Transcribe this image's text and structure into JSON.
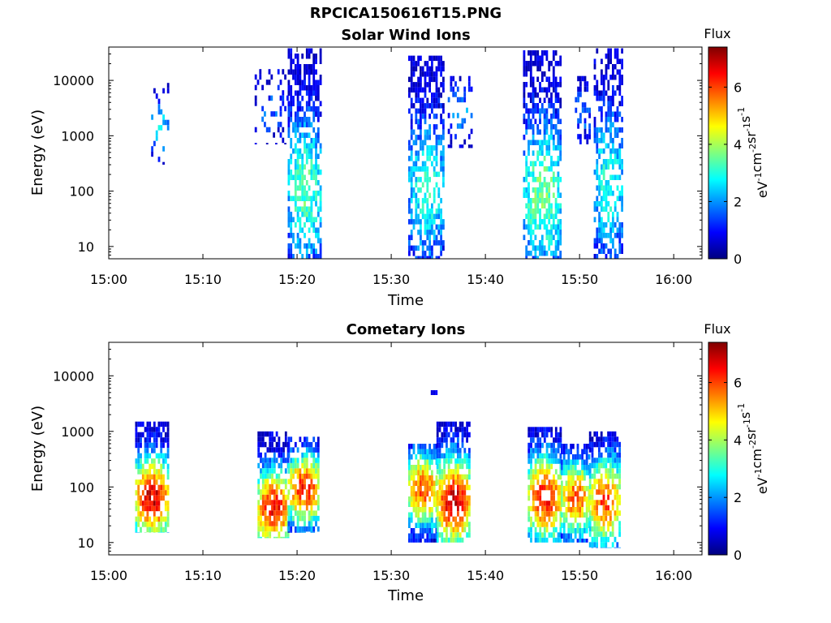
{
  "page_title": "RPCICA150616T15.PNG",
  "colorbar": {
    "label": "Flux",
    "unit_base": "eV",
    "unit_parts": [
      {
        "text": "eV",
        "sup": "-1"
      },
      {
        "text": "cm",
        "sup": "-2"
      },
      {
        "text": "sr",
        "sup": "-1"
      },
      {
        "text": "s",
        "sup": "-1"
      }
    ],
    "ticks": [
      "0",
      "2",
      "4",
      "6"
    ],
    "tick_values": [
      0,
      2,
      4,
      6
    ],
    "range": [
      0,
      7.4
    ],
    "colormap": "jet",
    "colors": [
      "#00007f",
      "#0000ff",
      "#007fff",
      "#00ffff",
      "#7fff7f",
      "#ffff00",
      "#ff7f00",
      "#ff0000",
      "#7f0000"
    ]
  },
  "chart_data": [
    {
      "type": "heatmap",
      "title": "Solar Wind Ions",
      "xlabel": "Time",
      "ylabel": "Energy (eV)",
      "x_ticks": [
        "15:00",
        "15:10",
        "15:20",
        "15:30",
        "15:40",
        "15:50",
        "16:00"
      ],
      "x_tick_minutes": [
        0,
        10,
        20,
        30,
        40,
        50,
        60
      ],
      "xlim_minutes": [
        0,
        63
      ],
      "y_scale": "log",
      "y_ticks": [
        "10",
        "100",
        "1000",
        "10000"
      ],
      "y_tick_values": [
        10,
        100,
        1000,
        10000
      ],
      "ylim": [
        6,
        40000
      ],
      "value_range": [
        0,
        7.4
      ],
      "bursts": [
        {
          "t_start": 4.5,
          "t_end": 6.2,
          "e_low": 300,
          "e_high": 9000,
          "core_e": 1500,
          "peak_flux": 2.6,
          "density": 0.25
        },
        {
          "t_start": 15.5,
          "t_end": 19.0,
          "e_low": 700,
          "e_high": 16000,
          "core_e": 3000,
          "peak_flux": 1.6,
          "density": 0.25
        },
        {
          "t_start": 19.0,
          "t_end": 22.5,
          "e_low": 6,
          "e_high": 38000,
          "core_e": 120,
          "peak_flux": 3.4,
          "density": 0.6
        },
        {
          "t_start": 31.8,
          "t_end": 35.5,
          "e_low": 6,
          "e_high": 28000,
          "core_e": 120,
          "peak_flux": 3.0,
          "density": 0.6
        },
        {
          "t_start": 36.0,
          "t_end": 38.5,
          "e_low": 600,
          "e_high": 12000,
          "core_e": 3000,
          "peak_flux": 2.0,
          "density": 0.3
        },
        {
          "t_start": 44.0,
          "t_end": 48.0,
          "e_low": 6,
          "e_high": 35000,
          "core_e": 100,
          "peak_flux": 3.6,
          "density": 0.6
        },
        {
          "t_start": 49.5,
          "t_end": 51.0,
          "e_low": 700,
          "e_high": 12000,
          "core_e": 3000,
          "peak_flux": 1.8,
          "density": 0.35
        },
        {
          "t_start": 51.5,
          "t_end": 54.5,
          "e_low": 6,
          "e_high": 38000,
          "core_e": 150,
          "peak_flux": 3.0,
          "density": 0.55
        }
      ]
    },
    {
      "type": "heatmap",
      "title": "Cometary Ions",
      "xlabel": "Time",
      "ylabel": "Energy (eV)",
      "x_ticks": [
        "15:00",
        "15:10",
        "15:20",
        "15:30",
        "15:40",
        "15:50",
        "16:00"
      ],
      "x_tick_minutes": [
        0,
        10,
        20,
        30,
        40,
        50,
        60
      ],
      "xlim_minutes": [
        0,
        63
      ],
      "y_scale": "log",
      "y_ticks": [
        "10",
        "100",
        "1000",
        "10000"
      ],
      "y_tick_values": [
        10,
        100,
        1000,
        10000
      ],
      "ylim": [
        6,
        40000
      ],
      "value_range": [
        0,
        7.4
      ],
      "bursts": [
        {
          "t_start": 2.8,
          "t_end": 6.2,
          "e_low": 15,
          "e_high": 1500,
          "core_e": 70,
          "peak_flux": 6.8,
          "density": 0.75
        },
        {
          "t_start": 15.8,
          "t_end": 19.0,
          "e_low": 12,
          "e_high": 1000,
          "core_e": 45,
          "peak_flux": 6.6,
          "density": 0.75
        },
        {
          "t_start": 19.0,
          "t_end": 22.3,
          "e_low": 15,
          "e_high": 800,
          "core_e": 100,
          "peak_flux": 6.3,
          "density": 0.7
        },
        {
          "t_start": 31.8,
          "t_end": 34.8,
          "e_low": 10,
          "e_high": 600,
          "core_e": 100,
          "peak_flux": 6.0,
          "density": 0.75
        },
        {
          "t_start": 34.8,
          "t_end": 38.3,
          "e_low": 10,
          "e_high": 1500,
          "core_e": 60,
          "peak_flux": 6.8,
          "density": 0.75
        },
        {
          "t_start": 44.5,
          "t_end": 48.0,
          "e_low": 10,
          "e_high": 1200,
          "core_e": 70,
          "peak_flux": 6.4,
          "density": 0.75
        },
        {
          "t_start": 48.0,
          "t_end": 51.0,
          "e_low": 10,
          "e_high": 600,
          "core_e": 70,
          "peak_flux": 5.8,
          "density": 0.75
        },
        {
          "t_start": 51.0,
          "t_end": 54.2,
          "e_low": 8,
          "e_high": 1000,
          "core_e": 60,
          "peak_flux": 6.0,
          "density": 0.7
        },
        {
          "t_start": 34.2,
          "t_end": 35.0,
          "e_low": 4500,
          "e_high": 5500,
          "core_e": 5000,
          "peak_flux": 2.0,
          "density": 0.9
        }
      ]
    }
  ]
}
